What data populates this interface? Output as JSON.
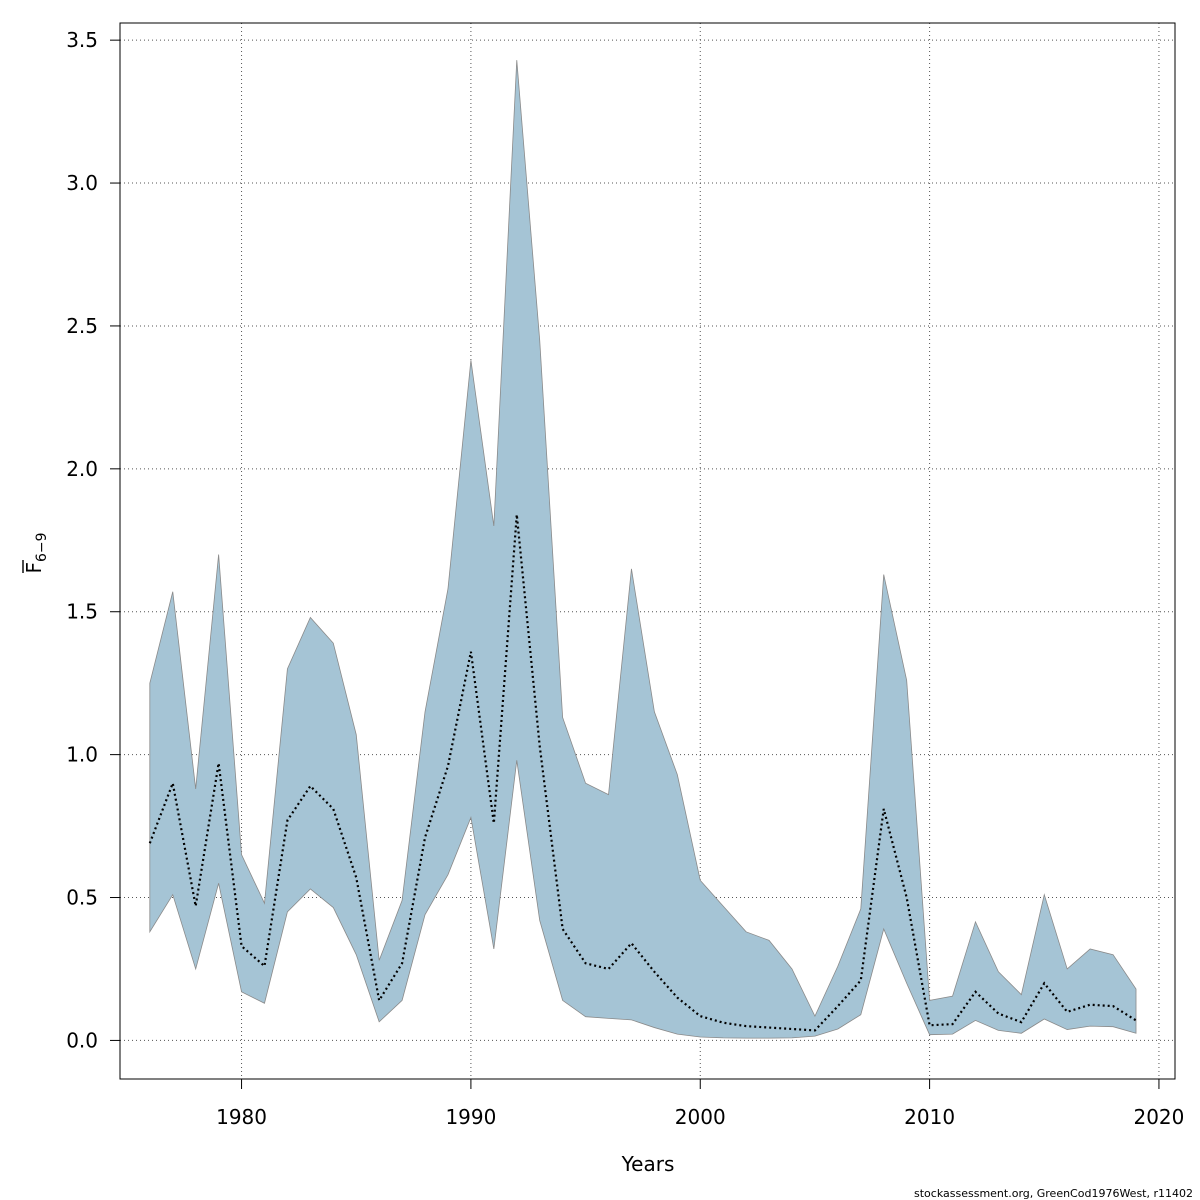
{
  "chart_data": {
    "type": "area",
    "title": "",
    "xlabel": "Years",
    "ylabel_main": "F",
    "ylabel_sub": "6−9",
    "xlim": [
      1974.7,
      2020.7
    ],
    "ylim": [
      -0.135,
      3.56
    ],
    "x_ticks": [
      1980,
      1990,
      2000,
      2010,
      2020
    ],
    "y_ticks": [
      0.0,
      0.5,
      1.0,
      1.5,
      2.0,
      2.5,
      3.0,
      3.5
    ],
    "y_tick_labels": [
      "0.0",
      "0.5",
      "1.0",
      "1.5",
      "2.0",
      "2.5",
      "3.0",
      "3.5"
    ],
    "grid": true,
    "band_color": "#a5c4d5",
    "band_edge_color": "#8a8a8a",
    "line_color": "#000000",
    "line_style": "dotted",
    "series": [
      {
        "x": [
          1976,
          1977,
          1978,
          1979,
          1980,
          1981,
          1982,
          1983,
          1984,
          1985,
          1986,
          1987,
          1988,
          1989,
          1990,
          1991,
          1992,
          1993,
          1994,
          1995,
          1996,
          1997,
          1998,
          1999,
          2000,
          2001,
          2002,
          2003,
          2004,
          2005,
          2006,
          2007,
          2008,
          2009,
          2010,
          2011,
          2012,
          2013,
          2014,
          2015,
          2016,
          2017,
          2018,
          2019
        ],
        "values": [
          0.69,
          0.9,
          0.47,
          0.97,
          0.33,
          0.26,
          0.77,
          0.89,
          0.81,
          0.57,
          0.14,
          0.27,
          0.71,
          0.96,
          1.36,
          0.76,
          1.84,
          1.03,
          0.39,
          0.27,
          0.25,
          0.34,
          0.24,
          0.15,
          0.085,
          0.062,
          0.05,
          0.045,
          0.04,
          0.035,
          0.12,
          0.21,
          0.81,
          0.5,
          0.053,
          0.057,
          0.17,
          0.094,
          0.064,
          0.2,
          0.1,
          0.125,
          0.12,
          0.07
        ],
        "lower": [
          0.38,
          0.51,
          0.25,
          0.55,
          0.17,
          0.13,
          0.45,
          0.53,
          0.465,
          0.3,
          0.065,
          0.14,
          0.44,
          0.58,
          0.78,
          0.32,
          0.98,
          0.42,
          0.14,
          0.083,
          0.077,
          0.072,
          0.045,
          0.022,
          0.012,
          0.009,
          0.008,
          0.008,
          0.009,
          0.015,
          0.04,
          0.09,
          0.39,
          0.2,
          0.02,
          0.022,
          0.07,
          0.035,
          0.025,
          0.075,
          0.038,
          0.05,
          0.048,
          0.025
        ],
        "upper": [
          1.25,
          1.57,
          0.88,
          1.7,
          0.65,
          0.48,
          1.3,
          1.48,
          1.39,
          1.07,
          0.28,
          0.49,
          1.15,
          1.58,
          2.38,
          1.8,
          3.43,
          2.45,
          1.13,
          0.9,
          0.86,
          1.65,
          1.15,
          0.93,
          0.56,
          0.47,
          0.38,
          0.35,
          0.25,
          0.085,
          0.26,
          0.46,
          1.63,
          1.26,
          0.14,
          0.155,
          0.415,
          0.24,
          0.16,
          0.51,
          0.25,
          0.32,
          0.3,
          0.18
        ]
      }
    ]
  },
  "footer": {
    "text": "stockassessment.org, GreenCod1976West, r11402"
  }
}
